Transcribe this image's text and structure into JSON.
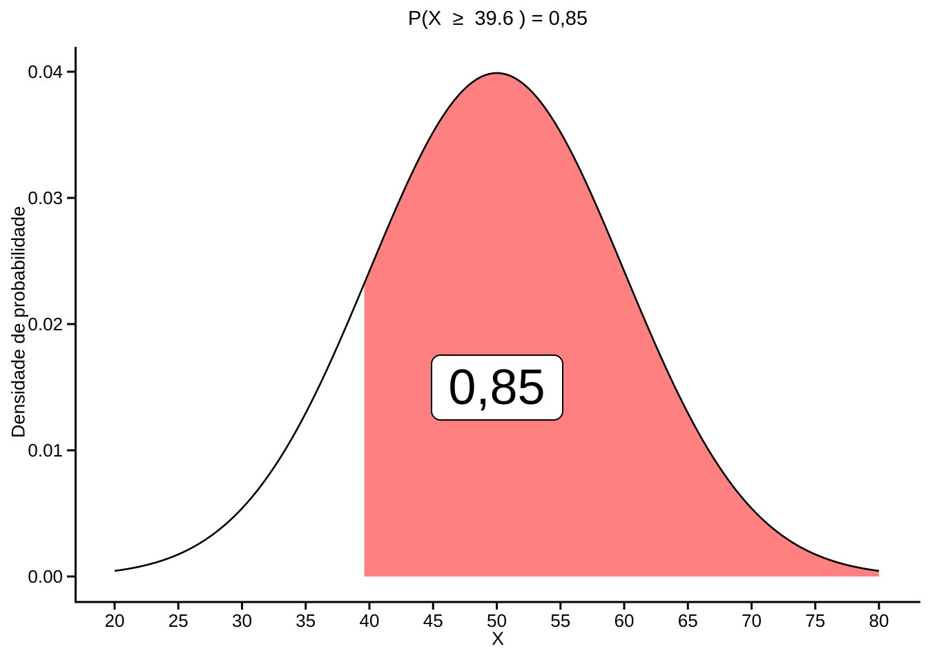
{
  "chart_data": {
    "type": "area",
    "title": "P(X  ≥  39.6 ) = 0,85",
    "xlabel": "X",
    "ylabel": "Densidade de probabilidade",
    "distribution": {
      "name": "normal",
      "mean": 50,
      "sd": 10
    },
    "x_range": [
      20,
      80
    ],
    "ylim": [
      0,
      0.04
    ],
    "x_ticks": [
      20,
      25,
      30,
      35,
      40,
      45,
      50,
      55,
      60,
      65,
      70,
      75,
      80
    ],
    "y_ticks": [
      {
        "v": 0.0,
        "label": "0.00"
      },
      {
        "v": 0.01,
        "label": "0.01"
      },
      {
        "v": 0.02,
        "label": "0.02"
      },
      {
        "v": 0.03,
        "label": "0.03"
      },
      {
        "v": 0.04,
        "label": "0.04"
      }
    ],
    "shaded_region": {
      "from": 39.6,
      "to": 80,
      "probability_label": "0,85"
    },
    "annotation": {
      "label": "0,85",
      "x": 50,
      "y": 0.015
    },
    "colors": {
      "shade_fill": "#FF8080",
      "curve": "#000000",
      "axis": "#000000",
      "text": "#000000",
      "annotation_bg": "#FFFFFF",
      "annotation_border": "#000000"
    },
    "grid": false,
    "legend": false
  }
}
